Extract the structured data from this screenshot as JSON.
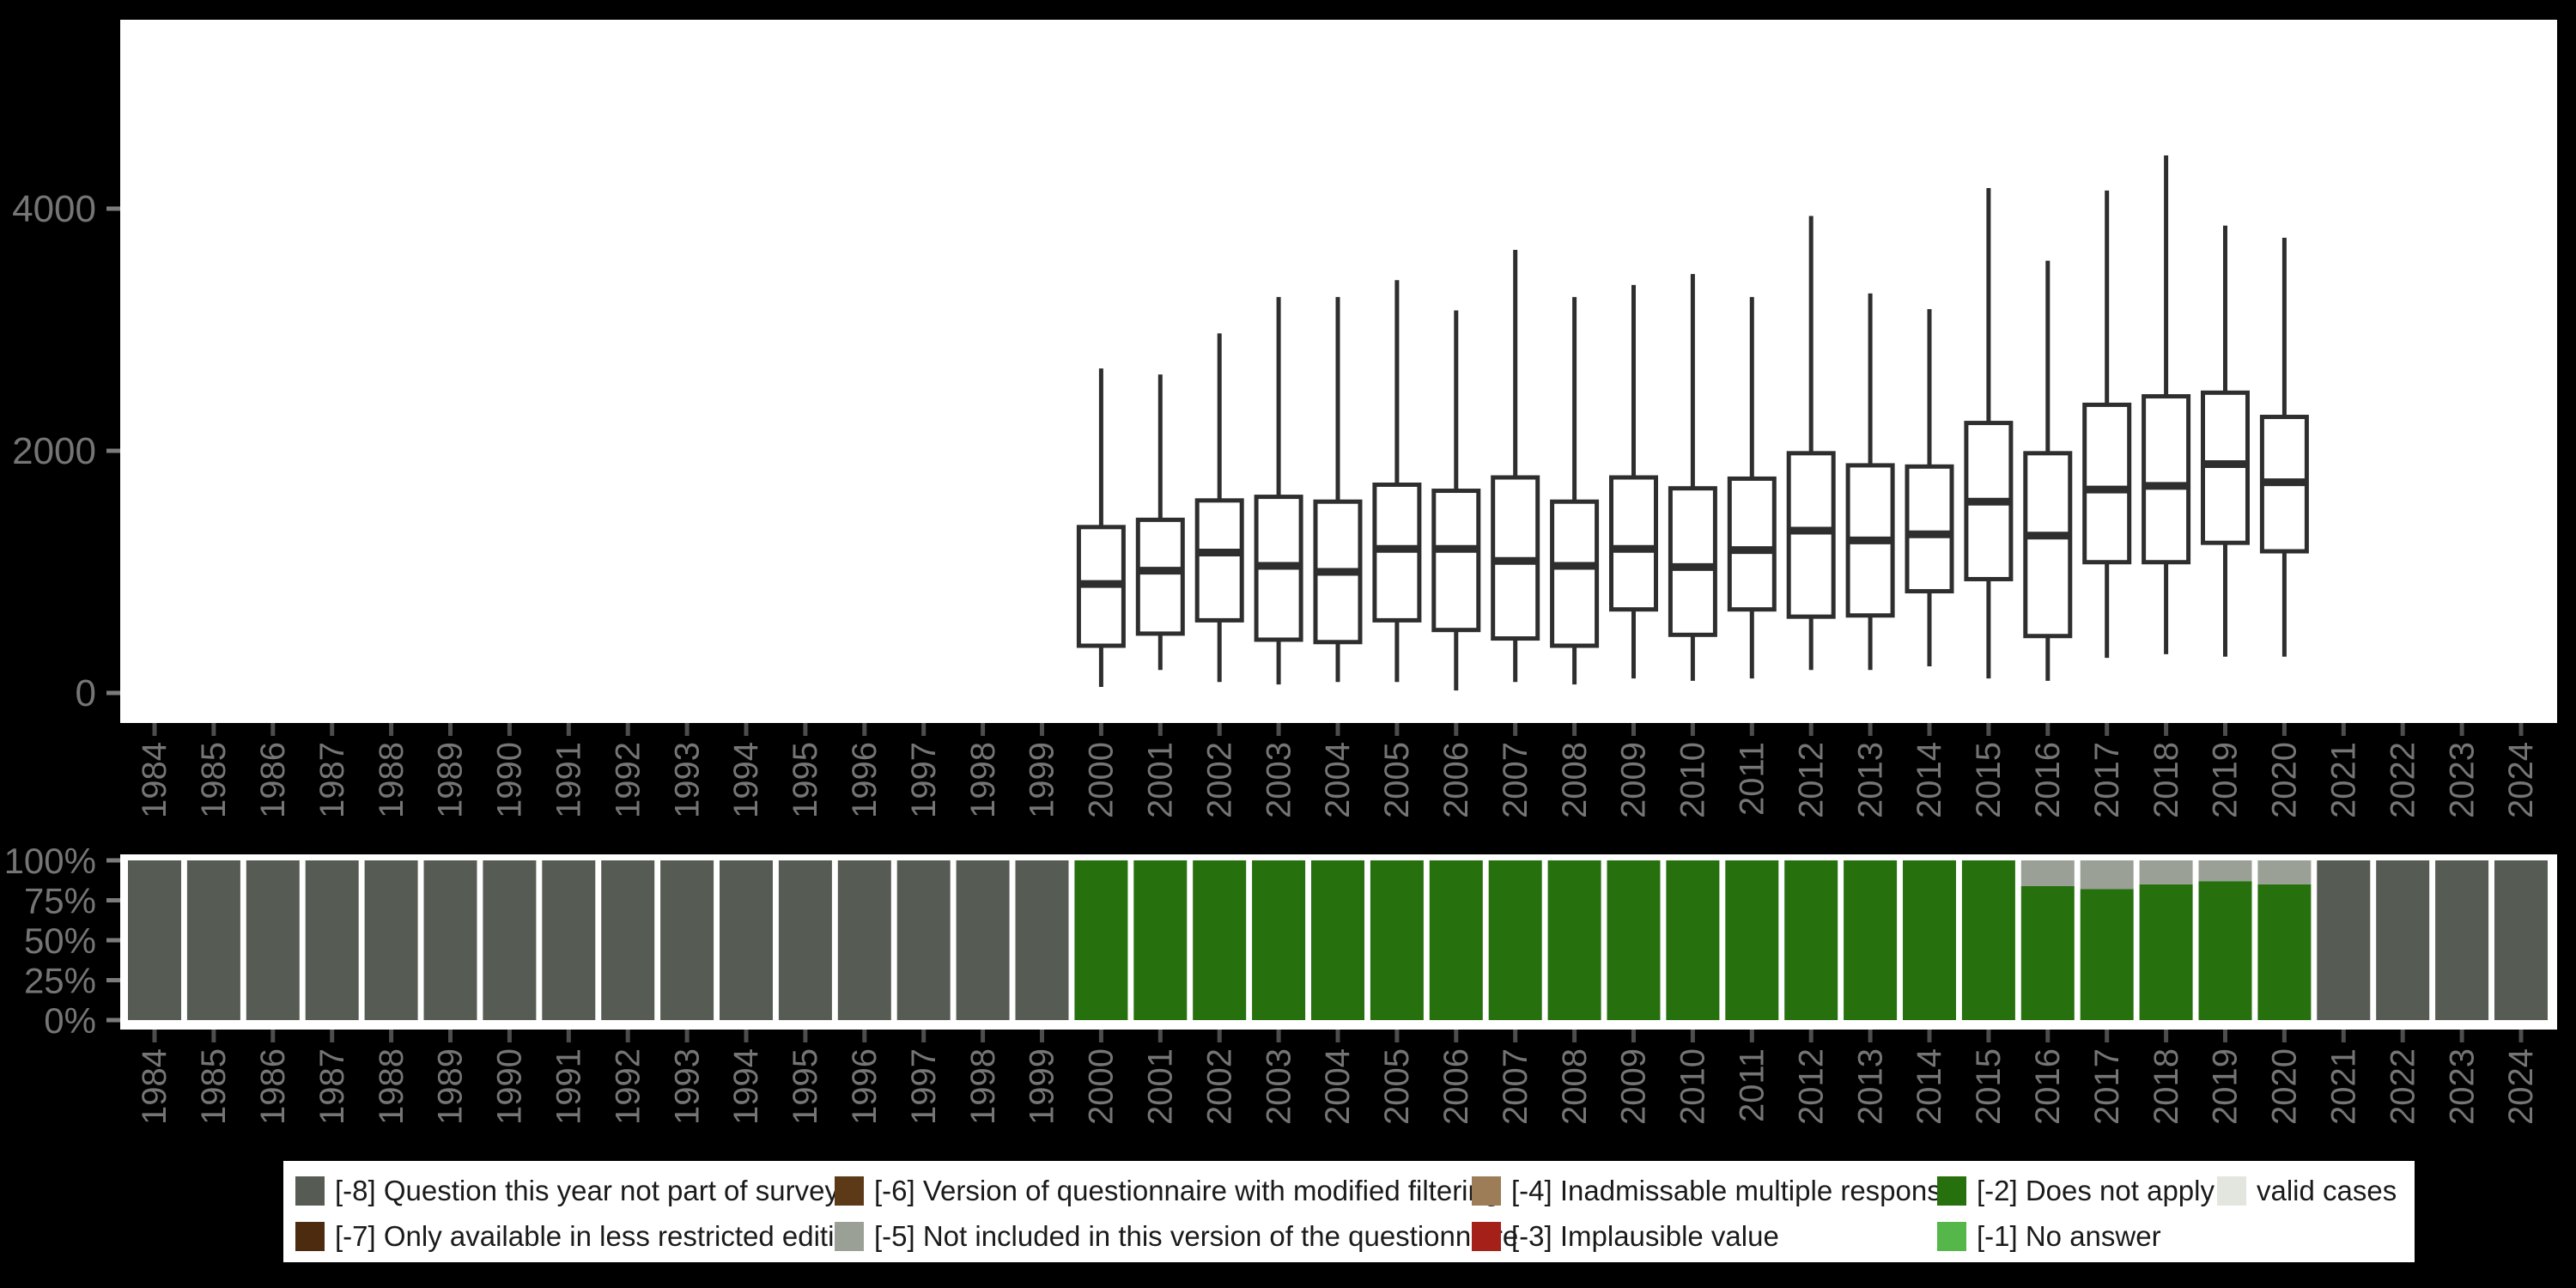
{
  "figure": {
    "background": "#000000",
    "panel_background": "#ffffff",
    "axis_text_color": "#757575",
    "box_stroke_color": "#2e2e2e"
  },
  "chart_data": [
    {
      "type": "boxplot",
      "title": "",
      "xlabel": "",
      "ylabel": "",
      "categories": [
        "1984",
        "1985",
        "1986",
        "1987",
        "1988",
        "1989",
        "1990",
        "1991",
        "1992",
        "1993",
        "1994",
        "1995",
        "1996",
        "1997",
        "1998",
        "1999",
        "2000",
        "2001",
        "2002",
        "2003",
        "2004",
        "2005",
        "2006",
        "2007",
        "2008",
        "2009",
        "2010",
        "2011",
        "2012",
        "2013",
        "2014",
        "2015",
        "2016",
        "2017",
        "2018",
        "2019",
        "2020",
        "2021",
        "2022",
        "2023",
        "2024"
      ],
      "yticks": [
        0,
        2000,
        4000
      ],
      "ytick_labels": [
        "0",
        "2000",
        "4000"
      ],
      "ylim": [
        0,
        5500
      ],
      "grid": false,
      "boxes": [
        {
          "year": "2000",
          "min": 50,
          "q1": 390,
          "median": 900,
          "q3": 1370,
          "max": 2680
        },
        {
          "year": "2001",
          "min": 190,
          "q1": 490,
          "median": 1010,
          "q3": 1430,
          "max": 2630
        },
        {
          "year": "2002",
          "min": 90,
          "q1": 600,
          "median": 1160,
          "q3": 1590,
          "max": 2970
        },
        {
          "year": "2003",
          "min": 70,
          "q1": 440,
          "median": 1050,
          "q3": 1620,
          "max": 3270
        },
        {
          "year": "2004",
          "min": 90,
          "q1": 420,
          "median": 1000,
          "q3": 1580,
          "max": 3270
        },
        {
          "year": "2005",
          "min": 90,
          "q1": 600,
          "median": 1190,
          "q3": 1720,
          "max": 3410
        },
        {
          "year": "2006",
          "min": 20,
          "q1": 520,
          "median": 1190,
          "q3": 1670,
          "max": 3160
        },
        {
          "year": "2007",
          "min": 90,
          "q1": 450,
          "median": 1090,
          "q3": 1780,
          "max": 3660
        },
        {
          "year": "2008",
          "min": 70,
          "q1": 390,
          "median": 1050,
          "q3": 1580,
          "max": 3270
        },
        {
          "year": "2009",
          "min": 120,
          "q1": 690,
          "median": 1190,
          "q3": 1780,
          "max": 3370
        },
        {
          "year": "2010",
          "min": 100,
          "q1": 480,
          "median": 1040,
          "q3": 1690,
          "max": 3460
        },
        {
          "year": "2011",
          "min": 120,
          "q1": 690,
          "median": 1180,
          "q3": 1770,
          "max": 3270
        },
        {
          "year": "2012",
          "min": 190,
          "q1": 630,
          "median": 1340,
          "q3": 1980,
          "max": 3940
        },
        {
          "year": "2013",
          "min": 190,
          "q1": 640,
          "median": 1260,
          "q3": 1880,
          "max": 3300
        },
        {
          "year": "2014",
          "min": 220,
          "q1": 840,
          "median": 1310,
          "q3": 1870,
          "max": 3170
        },
        {
          "year": "2015",
          "min": 120,
          "q1": 940,
          "median": 1580,
          "q3": 2230,
          "max": 4170
        },
        {
          "year": "2016",
          "min": 100,
          "q1": 470,
          "median": 1300,
          "q3": 1980,
          "max": 3570
        },
        {
          "year": "2017",
          "min": 290,
          "q1": 1080,
          "median": 1680,
          "q3": 2380,
          "max": 4150
        },
        {
          "year": "2018",
          "min": 320,
          "q1": 1080,
          "median": 1710,
          "q3": 2450,
          "max": 4440
        },
        {
          "year": "2019",
          "min": 300,
          "q1": 1240,
          "median": 1890,
          "q3": 2480,
          "max": 3860
        },
        {
          "year": "2020",
          "min": 300,
          "q1": 1170,
          "median": 1740,
          "q3": 2280,
          "max": 3760
        }
      ]
    },
    {
      "type": "bar",
      "subtype": "stacked-percent",
      "title": "",
      "xlabel": "",
      "ylabel": "",
      "categories": [
        "1984",
        "1985",
        "1986",
        "1987",
        "1988",
        "1989",
        "1990",
        "1991",
        "1992",
        "1993",
        "1994",
        "1995",
        "1996",
        "1997",
        "1998",
        "1999",
        "2000",
        "2001",
        "2002",
        "2003",
        "2004",
        "2005",
        "2006",
        "2007",
        "2008",
        "2009",
        "2010",
        "2011",
        "2012",
        "2013",
        "2014",
        "2015",
        "2016",
        "2017",
        "2018",
        "2019",
        "2020",
        "2021",
        "2022",
        "2023",
        "2024"
      ],
      "yticks": [
        0,
        25,
        50,
        75,
        100
      ],
      "ytick_labels": [
        "0%",
        "25%",
        "50%",
        "75%",
        "100%"
      ],
      "ylim": [
        0,
        100
      ],
      "grid": false,
      "bars": [
        {
          "year": "1984",
          "segments": [
            {
              "code": "-8",
              "pct": 100
            }
          ]
        },
        {
          "year": "1985",
          "segments": [
            {
              "code": "-8",
              "pct": 100
            }
          ]
        },
        {
          "year": "1986",
          "segments": [
            {
              "code": "-8",
              "pct": 100
            }
          ]
        },
        {
          "year": "1987",
          "segments": [
            {
              "code": "-8",
              "pct": 100
            }
          ]
        },
        {
          "year": "1988",
          "segments": [
            {
              "code": "-8",
              "pct": 100
            }
          ]
        },
        {
          "year": "1989",
          "segments": [
            {
              "code": "-8",
              "pct": 100
            }
          ]
        },
        {
          "year": "1990",
          "segments": [
            {
              "code": "-8",
              "pct": 100
            }
          ]
        },
        {
          "year": "1991",
          "segments": [
            {
              "code": "-8",
              "pct": 100
            }
          ]
        },
        {
          "year": "1992",
          "segments": [
            {
              "code": "-8",
              "pct": 100
            }
          ]
        },
        {
          "year": "1993",
          "segments": [
            {
              "code": "-8",
              "pct": 100
            }
          ]
        },
        {
          "year": "1994",
          "segments": [
            {
              "code": "-8",
              "pct": 100
            }
          ]
        },
        {
          "year": "1995",
          "segments": [
            {
              "code": "-8",
              "pct": 100
            }
          ]
        },
        {
          "year": "1996",
          "segments": [
            {
              "code": "-8",
              "pct": 100
            }
          ]
        },
        {
          "year": "1997",
          "segments": [
            {
              "code": "-8",
              "pct": 100
            }
          ]
        },
        {
          "year": "1998",
          "segments": [
            {
              "code": "-8",
              "pct": 100
            }
          ]
        },
        {
          "year": "1999",
          "segments": [
            {
              "code": "-8",
              "pct": 100
            }
          ]
        },
        {
          "year": "2000",
          "segments": [
            {
              "code": "-2",
              "pct": 100
            }
          ]
        },
        {
          "year": "2001",
          "segments": [
            {
              "code": "-2",
              "pct": 100
            }
          ]
        },
        {
          "year": "2002",
          "segments": [
            {
              "code": "-2",
              "pct": 100
            }
          ]
        },
        {
          "year": "2003",
          "segments": [
            {
              "code": "-2",
              "pct": 100
            }
          ]
        },
        {
          "year": "2004",
          "segments": [
            {
              "code": "-2",
              "pct": 100
            }
          ]
        },
        {
          "year": "2005",
          "segments": [
            {
              "code": "-2",
              "pct": 100
            }
          ]
        },
        {
          "year": "2006",
          "segments": [
            {
              "code": "-2",
              "pct": 100
            }
          ]
        },
        {
          "year": "2007",
          "segments": [
            {
              "code": "-2",
              "pct": 100
            }
          ]
        },
        {
          "year": "2008",
          "segments": [
            {
              "code": "-2",
              "pct": 100
            }
          ]
        },
        {
          "year": "2009",
          "segments": [
            {
              "code": "-2",
              "pct": 100
            }
          ]
        },
        {
          "year": "2010",
          "segments": [
            {
              "code": "-2",
              "pct": 100
            }
          ]
        },
        {
          "year": "2011",
          "segments": [
            {
              "code": "-2",
              "pct": 100
            }
          ]
        },
        {
          "year": "2012",
          "segments": [
            {
              "code": "-2",
              "pct": 100
            }
          ]
        },
        {
          "year": "2013",
          "segments": [
            {
              "code": "-2",
              "pct": 100
            }
          ]
        },
        {
          "year": "2014",
          "segments": [
            {
              "code": "-2",
              "pct": 100
            }
          ]
        },
        {
          "year": "2015",
          "segments": [
            {
              "code": "-2",
              "pct": 100
            }
          ]
        },
        {
          "year": "2016",
          "segments": [
            {
              "code": "-2",
              "pct": 84
            },
            {
              "code": "-5",
              "pct": 16
            }
          ]
        },
        {
          "year": "2017",
          "segments": [
            {
              "code": "-2",
              "pct": 82
            },
            {
              "code": "-5",
              "pct": 18
            }
          ]
        },
        {
          "year": "2018",
          "segments": [
            {
              "code": "-2",
              "pct": 85
            },
            {
              "code": "-5",
              "pct": 15
            }
          ]
        },
        {
          "year": "2019",
          "segments": [
            {
              "code": "-2",
              "pct": 87
            },
            {
              "code": "-5",
              "pct": 13
            }
          ]
        },
        {
          "year": "2020",
          "segments": [
            {
              "code": "-2",
              "pct": 85
            },
            {
              "code": "-5",
              "pct": 15
            }
          ]
        },
        {
          "year": "2021",
          "segments": [
            {
              "code": "-8",
              "pct": 100
            }
          ]
        },
        {
          "year": "2022",
          "segments": [
            {
              "code": "-8",
              "pct": 100
            }
          ]
        },
        {
          "year": "2023",
          "segments": [
            {
              "code": "-8",
              "pct": 100
            }
          ]
        },
        {
          "year": "2024",
          "segments": [
            {
              "code": "-8",
              "pct": 100
            }
          ]
        }
      ]
    }
  ],
  "legend": {
    "position": "bottom-center",
    "labels": {
      "-8": "[-8] Question this year not part of survey",
      "-7": "[-7] Only available in less restricted edition",
      "-6": "[-6] Version of questionnaire with modified filtering",
      "-5": "[-5] Not included in this version of the questionnaire",
      "-4": "[-4] Inadmissable multiple response",
      "-3": "[-3] Implausible value",
      "-2": "[-2] Does not apply",
      "-1": "[-1] No answer",
      "valid": "valid cases"
    },
    "colors": {
      "-8": "#565c54",
      "-7": "#4c2b0e",
      "-6": "#5d3a17",
      "-5": "#9aa096",
      "-4": "#9d7d58",
      "-3": "#a42019",
      "-2": "#26700e",
      "-1": "#55b649",
      "valid": "#e2e6df"
    },
    "columns": [
      [
        "-8",
        "-7"
      ],
      [
        "-6",
        "-5"
      ],
      [
        "-4",
        "-3"
      ],
      [
        "-2",
        "-1"
      ],
      [
        "valid"
      ]
    ]
  }
}
